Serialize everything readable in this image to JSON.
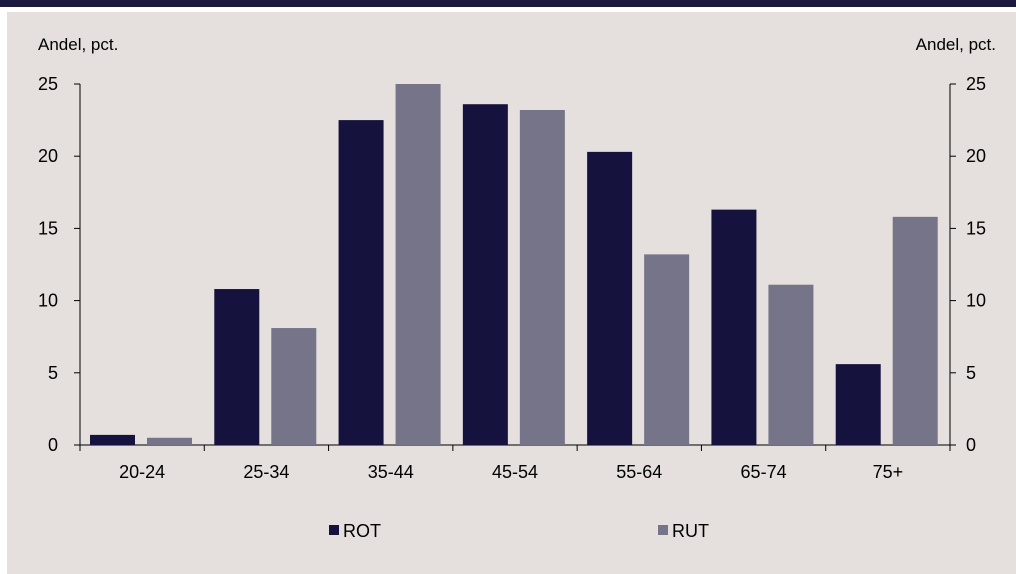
{
  "colors": {
    "top_bar": "#1d1a3f",
    "background": "#e5dfdd",
    "rot": "#15133d",
    "rut": "#767489"
  },
  "chart_data": {
    "type": "bar",
    "title": "",
    "ylabel_left": "Andel, pct.",
    "ylabel_right": "Andel, pct.",
    "categories": [
      "20-24",
      "25-34",
      "35-44",
      "45-54",
      "55-64",
      "65-74",
      "75+"
    ],
    "series": [
      {
        "name": "ROT",
        "values": [
          0.7,
          10.8,
          22.5,
          23.6,
          20.3,
          16.3,
          5.6
        ]
      },
      {
        "name": "RUT",
        "values": [
          0.5,
          8.1,
          25.0,
          23.2,
          13.2,
          11.1,
          15.8
        ]
      }
    ],
    "ylim": [
      0,
      25
    ],
    "yticks": [
      "0",
      "5",
      "10",
      "15",
      "20",
      "25"
    ],
    "grid": false,
    "legend_position": "bottom"
  }
}
